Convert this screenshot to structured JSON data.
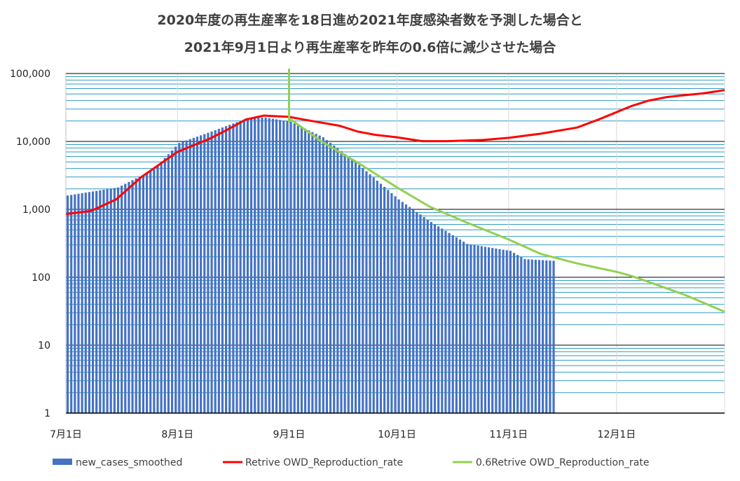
{
  "chart_data": {
    "type": "bar+line",
    "title": "2020年度の再生産率を18日進め2021年度感染者数を予測した場合と",
    "subtitle": "2021年9月1日より再生産率を昨年の0.6倍に減少させた場合",
    "y_scale": "log",
    "ylim": [
      1,
      100000
    ],
    "y_ticks": [
      "1",
      "10",
      "100",
      "1,000",
      "10,000",
      "100,000"
    ],
    "x_range": [
      "2021-07-01",
      "2021-12-31"
    ],
    "x_ticks": [
      "7月1日",
      "8月1日",
      "9月1日",
      "10月1日",
      "11月1日",
      "12月1日"
    ],
    "grid": "on",
    "legend_position": "bottom",
    "series": [
      {
        "name": "new_cases_smoothed",
        "kind": "bar",
        "color": "#4472C4",
        "x": [
          "2021-07-01",
          "2021-07-15",
          "2021-07-25",
          "2021-08-01",
          "2021-08-10",
          "2021-08-20",
          "2021-08-25",
          "2021-09-01",
          "2021-09-10",
          "2021-09-20",
          "2021-10-01",
          "2021-10-10",
          "2021-10-20",
          "2021-11-01",
          "2021-11-05",
          "2021-11-13"
        ],
        "values": [
          1600,
          2100,
          3900,
          9500,
          14000,
          22000,
          22500,
          19500,
          11500,
          4500,
          1400,
          650,
          310,
          245,
          185,
          175
        ]
      },
      {
        "name": "Retrive OWD_Reproduction_rate",
        "kind": "line",
        "color": "#FF0000",
        "x": [
          "2021-07-01",
          "2021-07-08",
          "2021-07-15",
          "2021-07-22",
          "2021-08-01",
          "2021-08-10",
          "2021-08-15",
          "2021-08-20",
          "2021-08-25",
          "2021-09-01",
          "2021-09-05",
          "2021-09-15",
          "2021-09-20",
          "2021-09-25",
          "2021-10-01",
          "2021-10-08",
          "2021-10-15",
          "2021-10-20",
          "2021-10-25",
          "2021-11-01",
          "2021-11-10",
          "2021-11-20",
          "2021-11-26",
          "2021-12-01",
          "2021-12-05",
          "2021-12-10",
          "2021-12-15",
          "2021-12-20",
          "2021-12-25",
          "2021-12-31"
        ],
        "values": [
          850,
          950,
          1400,
          3000,
          7000,
          11000,
          15000,
          21000,
          24000,
          23000,
          21000,
          17000,
          14000,
          12500,
          11500,
          10100,
          10100,
          10300,
          10500,
          11300,
          13000,
          16000,
          21000,
          27000,
          33000,
          40000,
          45000,
          48000,
          51000,
          57000
        ]
      },
      {
        "name": "0.6Retrive OWD_Reproduction_rate",
        "kind": "line",
        "color": "#92D050",
        "x": [
          "2021-09-01",
          "2021-09-10",
          "2021-09-20",
          "2021-10-01",
          "2021-10-10",
          "2021-10-20",
          "2021-11-01",
          "2021-11-10",
          "2021-11-20",
          "2021-12-01",
          "2021-12-05",
          "2021-12-10",
          "2021-12-20",
          "2021-12-31"
        ],
        "values": [
          22000,
          10000,
          4900,
          2100,
          1100,
          650,
          360,
          220,
          160,
          120,
          105,
          85,
          55,
          31
        ]
      }
    ],
    "annotations": [
      {
        "kind": "vertical-line",
        "x": "2021-09-01",
        "color": "#92D050"
      }
    ]
  }
}
